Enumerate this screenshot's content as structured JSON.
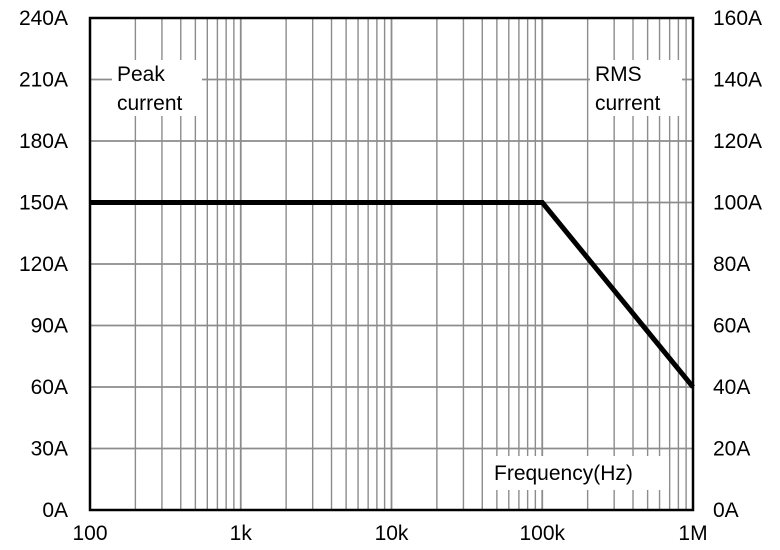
{
  "chart_data": {
    "type": "line",
    "x_scale": "log",
    "xlim": [
      100,
      1000000
    ],
    "x_ticks": [
      "100",
      "1k",
      "10k",
      "100k",
      "1M"
    ],
    "y_left": {
      "ylim": [
        0,
        240
      ],
      "ticks": [
        "0A",
        "30A",
        "60A",
        "90A",
        "120A",
        "150A",
        "180A",
        "210A",
        "240A"
      ]
    },
    "y_right": {
      "ylim": [
        0,
        160
      ],
      "ticks": [
        "0A",
        "20A",
        "40A",
        "60A",
        "80A",
        "100A",
        "120A",
        "140A",
        "160A"
      ]
    },
    "grid": true,
    "series": [
      {
        "x": [
          100,
          100000,
          1000000
        ],
        "y": [
          150,
          150,
          60
        ],
        "axis": "left"
      }
    ],
    "annotations": {
      "peak_line1": "Peak",
      "peak_line2": "current",
      "rms_line1": "RMS",
      "rms_line2": "current",
      "frequency": "Frequency(Hz)"
    }
  }
}
